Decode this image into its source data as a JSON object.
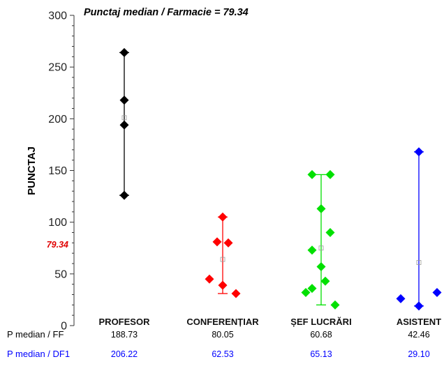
{
  "chart_data": {
    "type": "scatter",
    "title": "Punctaj median / Farmacie = 79.34",
    "ylabel": "PUNCTAJ",
    "xlabel": "",
    "ylim": [
      0,
      300
    ],
    "yticks": [
      0,
      50,
      100,
      150,
      200,
      250,
      300
    ],
    "grid": false,
    "reference_label": "79.34",
    "reference_value": 79.34,
    "categories": [
      "PROFESOR",
      "CONFERENȚIAR",
      "ȘEF LUCRĂRI",
      "ASISTENT"
    ],
    "series": [
      {
        "color": "#000000",
        "points": [
          [
            0,
            264
          ],
          [
            0,
            218
          ],
          [
            0,
            194
          ],
          [
            0,
            126
          ]
        ],
        "range": [
          126,
          264
        ],
        "mean": 201
      },
      {
        "color": "#ff0000",
        "points": [
          [
            -0.19,
            45
          ],
          [
            -0.08,
            81
          ],
          [
            0,
            105
          ],
          [
            0,
            39
          ],
          [
            0.08,
            80
          ],
          [
            0.19,
            31
          ]
        ],
        "range": [
          31,
          105
        ],
        "mean": 64
      },
      {
        "color": "#00e000",
        "points": [
          [
            -0.22,
            32
          ],
          [
            -0.13,
            36
          ],
          [
            -0.13,
            146
          ],
          [
            -0.13,
            73
          ],
          [
            0,
            113
          ],
          [
            0,
            57
          ],
          [
            0.06,
            43
          ],
          [
            0.13,
            146
          ],
          [
            0.13,
            90
          ],
          [
            0.2,
            20
          ]
        ],
        "range": [
          20,
          146
        ],
        "mean": 75
      },
      {
        "color": "#0000ff",
        "points": [
          [
            -0.26,
            26
          ],
          [
            0,
            168
          ],
          [
            0,
            19
          ],
          [
            0.26,
            32
          ]
        ],
        "range": [
          19,
          168
        ],
        "mean": 61
      }
    ],
    "table": {
      "rows": [
        {
          "label": "P median / FF",
          "color": "#000000",
          "values": [
            "188.73",
            "80.05",
            "60.68",
            "42.46"
          ]
        },
        {
          "label": "P median / DF1",
          "color": "#0000ff",
          "values": [
            "206.22",
            "62.53",
            "65.13",
            "29.10"
          ]
        }
      ]
    }
  }
}
